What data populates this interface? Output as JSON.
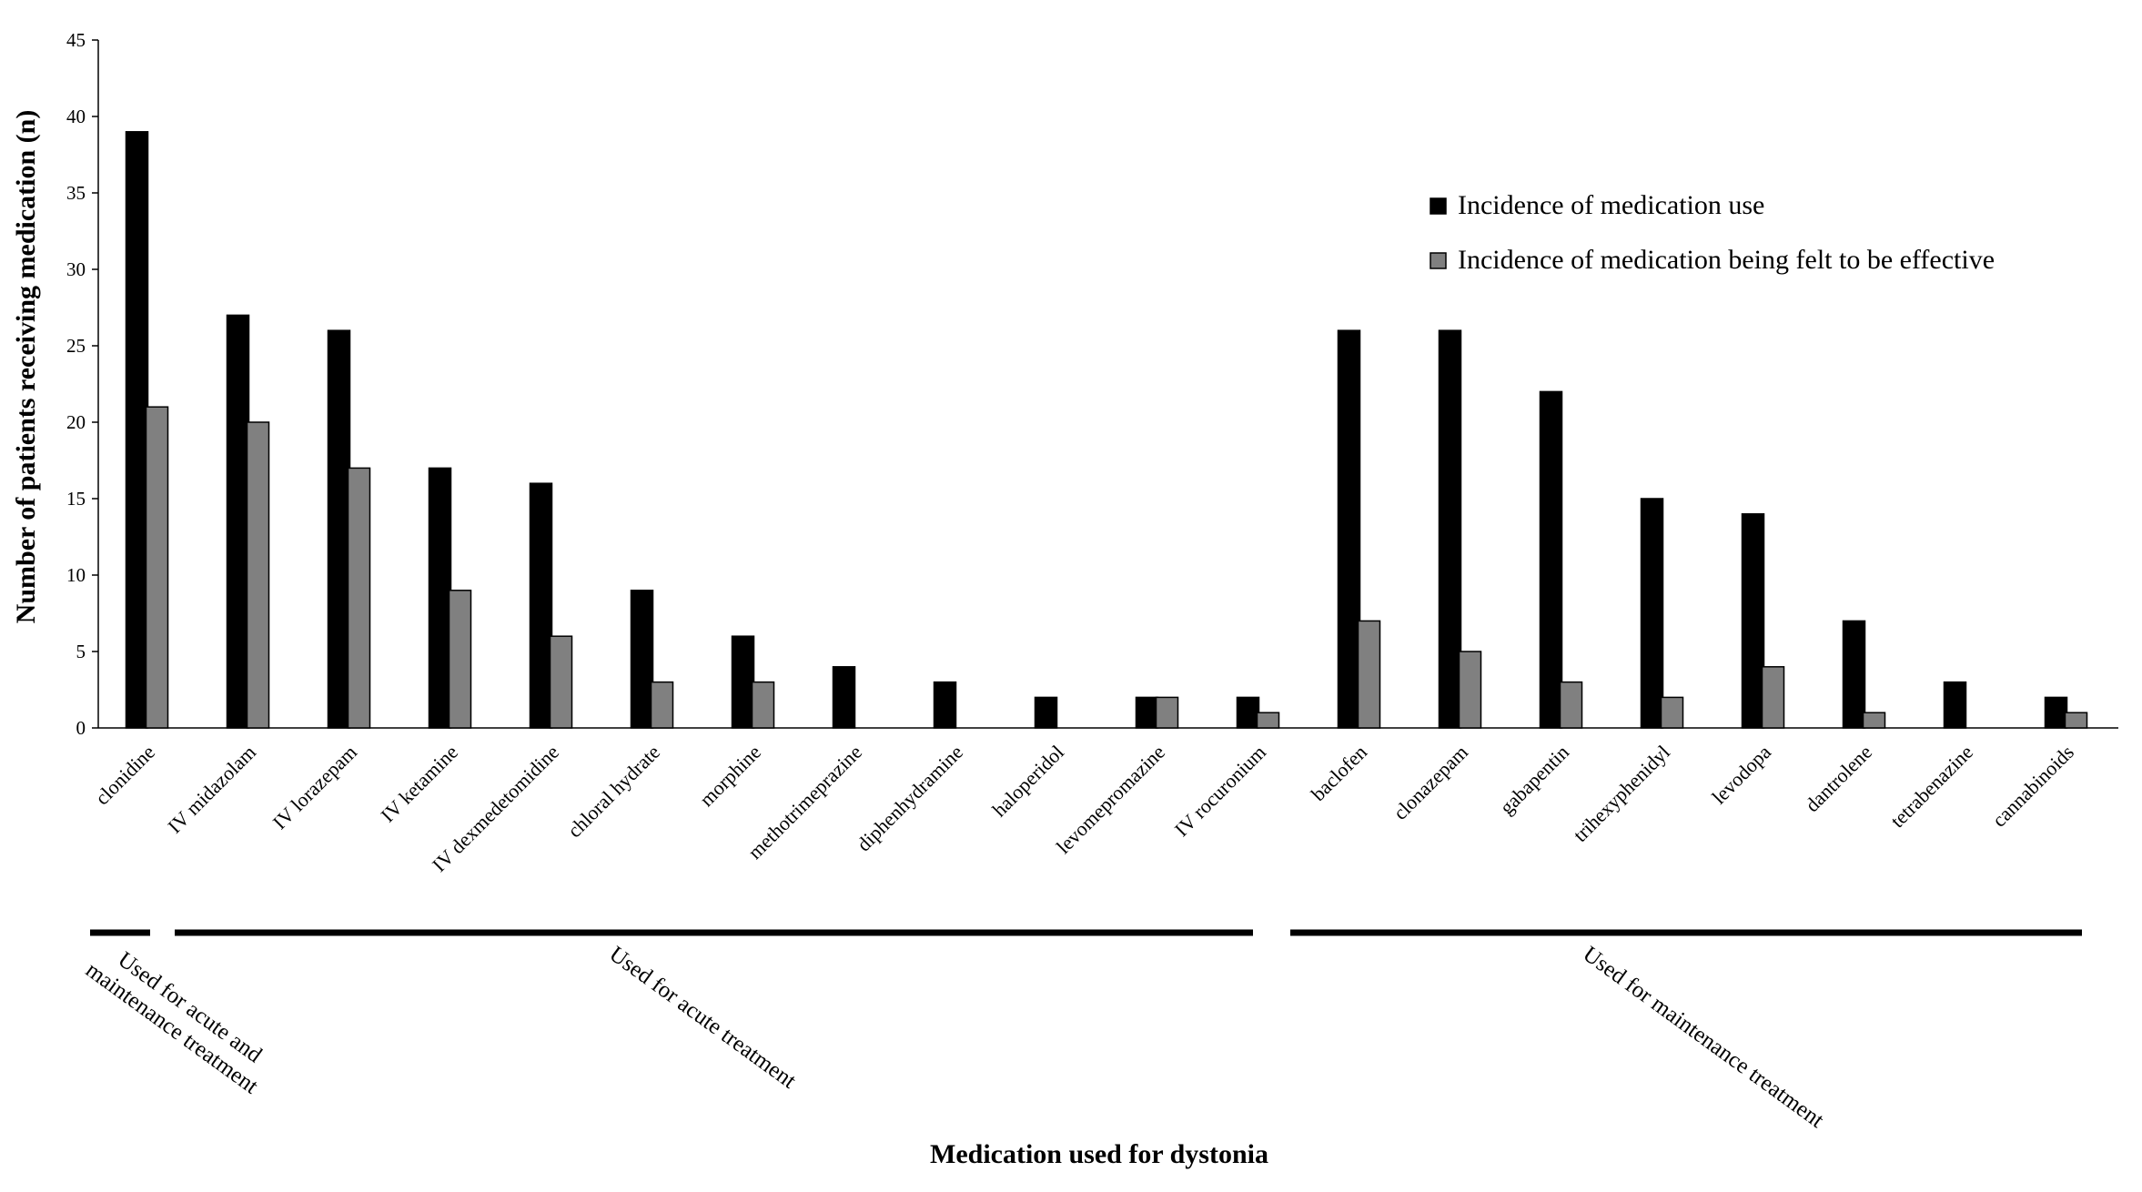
{
  "chart_data": {
    "type": "bar",
    "x_label": "Medication used for dystonia",
    "y_label": "Number of patients receiving medication (n)",
    "categories": [
      "clonidine",
      "IV midazolam",
      "IV lorazepam",
      "IV ketamine",
      "IV dexmedetomidine",
      "chloral hydrate",
      "morphine",
      "methotrimeprazine",
      "diphenhydramine",
      "haloperidol",
      "levomepromazine",
      "IV rocuronium",
      "baclofen",
      "clonazepam",
      "gabapentin",
      "trihexyphenidyl",
      "levodopa",
      "dantrolene",
      "tetrabenazine",
      "cannabinoids"
    ],
    "series": [
      {
        "name": "Incidence of medication use",
        "color": "#000000",
        "values": [
          39,
          27,
          26,
          17,
          16,
          9,
          6,
          4,
          3,
          2,
          2,
          2,
          26,
          26,
          22,
          15,
          14,
          7,
          3,
          2
        ]
      },
      {
        "name": "Incidence of medication being felt to be effective",
        "color": "#808080",
        "values": [
          21,
          20,
          17,
          9,
          6,
          3,
          3,
          0,
          0,
          0,
          2,
          1,
          7,
          5,
          3,
          2,
          4,
          1,
          0,
          1
        ]
      }
    ],
    "groups": [
      {
        "label": [
          "Used for acute and",
          "maintenance treatment"
        ]
      },
      {
        "label": [
          "Used for acute treatment"
        ]
      },
      {
        "label": [
          "Used for maintenance treatment"
        ]
      }
    ],
    "ylim": [
      0,
      45
    ],
    "yticks": [
      0,
      5,
      10,
      15,
      20,
      25,
      30,
      35,
      40,
      45
    ],
    "legend": "upper right"
  }
}
